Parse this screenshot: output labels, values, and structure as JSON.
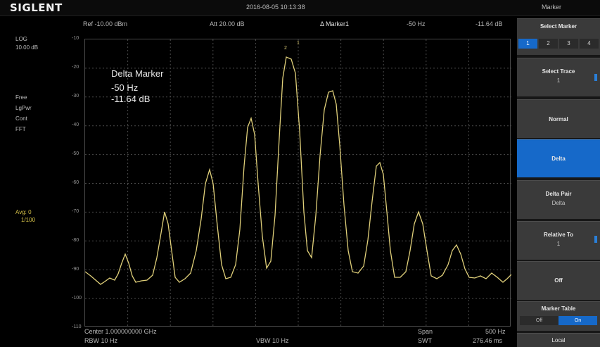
{
  "header": {
    "brand": "SIGLENT",
    "datetime": "2016-08-05  10:13:38",
    "menu_title": "Marker"
  },
  "infobar": {
    "ref": "Ref  -10.00 dBm",
    "att": "Att  20.00 dB",
    "marker_title": "Δ Marker1",
    "freq_delta": "-50  Hz",
    "amp_delta": "-11.64 dB"
  },
  "left_info": {
    "scale_type": "LOG",
    "scale_div": "10.00 dB",
    "trace_lines": [
      "Free",
      "LgPwr",
      "Cont",
      "FFT"
    ],
    "avg_label": "Avg: 0",
    "avg_value": "1/100"
  },
  "y_ticks": [
    "-10",
    "-20",
    "-30",
    "-40",
    "-50",
    "-60",
    "-70",
    "-80",
    "-90",
    "-100",
    "-110"
  ],
  "delta_marker": {
    "title": "Delta Marker",
    "freq": "-50  Hz",
    "amp": "-11.64 dB"
  },
  "marker_labels": [
    "1",
    "2"
  ],
  "bottombar": {
    "center": "Center  1.000000000 GHz",
    "rbw": "RBW        10  Hz",
    "vbw": "VBW         10  Hz",
    "span": "Span",
    "span_value": "500  Hz",
    "swt": "SWT",
    "swt_value": "276.46 ms"
  },
  "sidebar": {
    "select_marker_label": "Select Marker",
    "marker_numbers": [
      "1",
      "2",
      "3",
      "4"
    ],
    "select_trace_label": "Select Trace",
    "select_trace_value": "1",
    "normal_label": "Normal",
    "delta_label": "Delta",
    "delta_pair_label": "Delta Pair",
    "delta_pair_value": "Delta",
    "relative_to_label": "Relative To",
    "relative_to_value": "1",
    "off_label": "Off",
    "marker_table_label": "Marker Table",
    "marker_table_off": "Off",
    "marker_table_on": "On",
    "local_label": "Local",
    "accent_color": "#1669c9"
  },
  "trace": {
    "color": "#e0d07a"
  }
}
